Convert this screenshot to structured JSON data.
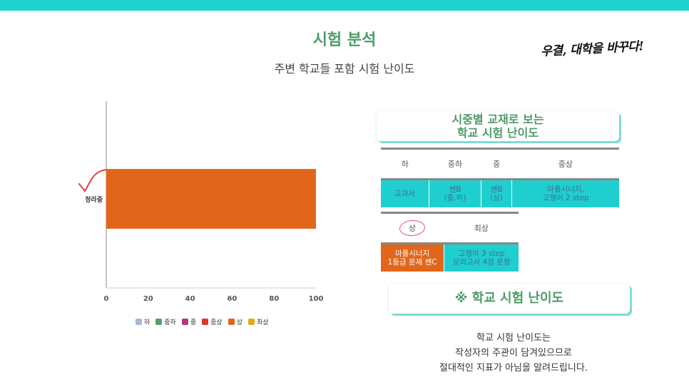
{
  "header": {
    "title": "시험 분석",
    "subtitle": "주변 학교들 포함 시험 난이도",
    "brand": "우결, 대학을 바꾸다!"
  },
  "colors": {
    "accent_bar": "#1fd1cf",
    "title_green": "#4d9b69",
    "bar": "#e1661c",
    "table_cyan": "#1fcfcf",
    "check_mark": "#e0404a"
  },
  "chart_data": {
    "type": "bar",
    "orientation": "horizontal",
    "categories": [
      "청라중"
    ],
    "series": [
      {
        "name": "상",
        "values": [
          100
        ],
        "color": "#e1661c"
      }
    ],
    "xlim": [
      0,
      100
    ],
    "xticks": [
      "0",
      "20",
      "40",
      "60",
      "80",
      "100"
    ],
    "grid": false,
    "legend_position": "bottom",
    "legend": [
      {
        "label": "하",
        "color": "#a9b6dc"
      },
      {
        "label": "중하",
        "color": "#5a9e6f"
      },
      {
        "label": "중",
        "color": "#b03a7a"
      },
      {
        "label": "중상",
        "color": "#d93a2a"
      },
      {
        "label": "상",
        "color": "#e1661c"
      },
      {
        "label": "최상",
        "color": "#e3a91a"
      }
    ]
  },
  "difficulty_card": {
    "line1": "시중별 교재로 보는",
    "line2": "학교 시험 난이도"
  },
  "table1": {
    "headers": [
      "하",
      "중하",
      "중",
      "중상"
    ],
    "cells": [
      [
        "교과서"
      ],
      [
        "쎈B",
        "(중,하)"
      ],
      [
        "쎈B",
        "(상)"
      ],
      [
        "마플시너지,",
        "고쟁이 2 step"
      ]
    ]
  },
  "table2": {
    "headers": [
      "상",
      "최상"
    ],
    "cells": [
      [
        "마플시너지",
        "1등급 문제 쎈C"
      ],
      [
        "고쟁이 3 step",
        "모의고사 4점 문항"
      ]
    ]
  },
  "section2": {
    "title": "※ 학교 시험 난이도"
  },
  "note": {
    "line1": "학교 시험 난이도는",
    "line2": "작성자의 주관이 담겨있으므로",
    "line3": "절대적인 지표가 아님을 알려드립니다."
  }
}
